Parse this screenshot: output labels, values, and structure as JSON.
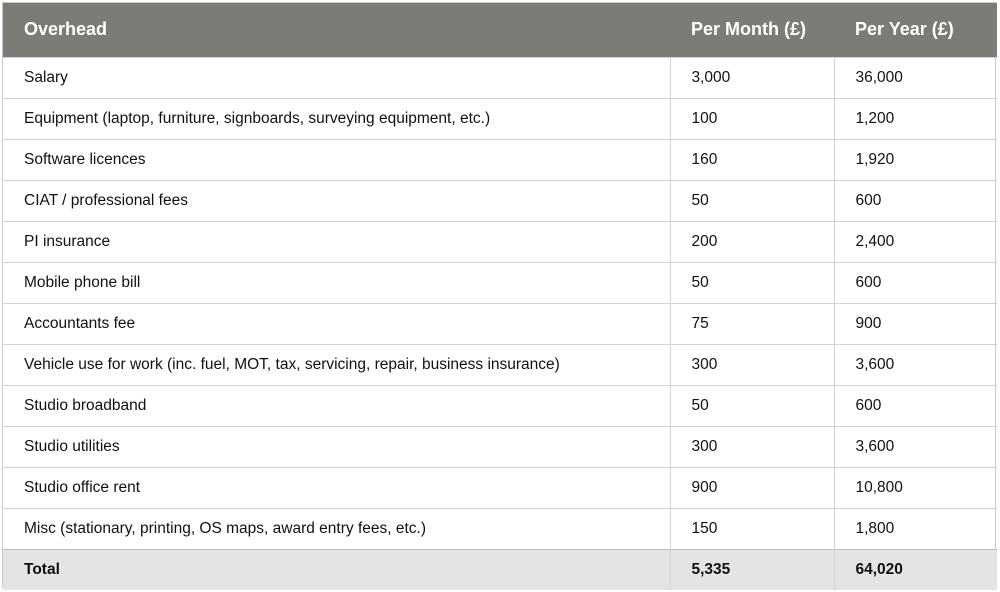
{
  "table": {
    "headers": [
      "Overhead",
      "Per Month (£)",
      "Per Year (£)"
    ],
    "rows": [
      {
        "overhead": "Salary",
        "per_month": "3,000",
        "per_year": "36,000"
      },
      {
        "overhead": "Equipment (laptop, furniture, signboards, surveying equipment, etc.)",
        "per_month": "100",
        "per_year": "1,200"
      },
      {
        "overhead": "Software licences",
        "per_month": "160",
        "per_year": "1,920"
      },
      {
        "overhead": "CIAT / professional fees",
        "per_month": "50",
        "per_year": "600"
      },
      {
        "overhead": "PI insurance",
        "per_month": "200",
        "per_year": "2,400"
      },
      {
        "overhead": "Mobile phone bill",
        "per_month": "50",
        "per_year": "600"
      },
      {
        "overhead": "Accountants fee",
        "per_month": "75",
        "per_year": "900"
      },
      {
        "overhead": "Vehicle use for work (inc. fuel, MOT, tax, servicing, repair, business insurance)",
        "per_month": "300",
        "per_year": "3,600"
      },
      {
        "overhead": "Studio broadband",
        "per_month": "50",
        "per_year": "600"
      },
      {
        "overhead": "Studio utilities",
        "per_month": "300",
        "per_year": "3,600"
      },
      {
        "overhead": "Studio office rent",
        "per_month": "900",
        "per_year": "10,800"
      },
      {
        "overhead": "Misc (stationary, printing, OS maps, award entry fees, etc.)",
        "per_month": "150",
        "per_year": "1,800"
      }
    ],
    "total": {
      "label": "Total",
      "per_month": "5,335",
      "per_year": "64,020"
    }
  },
  "colors": {
    "header_background": "#7c7b76",
    "header_text": "#ffffff",
    "total_background": "#e4e4e4",
    "grid_line": "#d2d2d2"
  }
}
